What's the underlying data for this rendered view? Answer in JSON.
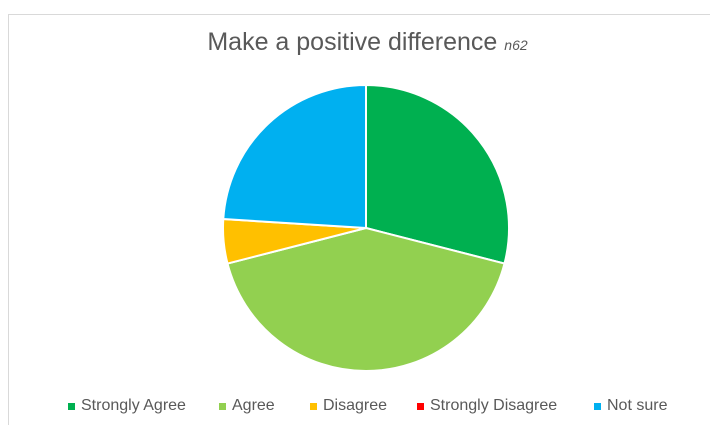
{
  "chart_data": {
    "type": "pie",
    "title": "Make a positive difference",
    "subtitle": "n62",
    "slices": [
      {
        "label": "Strongly Agree",
        "value": 29,
        "color": "#00b050"
      },
      {
        "label": "Agree",
        "value": 42,
        "color": "#92d050"
      },
      {
        "label": "Disagree",
        "value": 5,
        "color": "#ffc000"
      },
      {
        "label": "Strongly Disagree",
        "value": 0,
        "color": "#ff0000"
      },
      {
        "label": "Not sure",
        "value": 24,
        "color": "#00b0f0"
      }
    ],
    "legend_position": "bottom",
    "legend_labels_displayed": [
      "Strongly Agree",
      "Agree",
      "Disagree",
      "Strongly Disagree",
      "Not sure"
    ]
  }
}
